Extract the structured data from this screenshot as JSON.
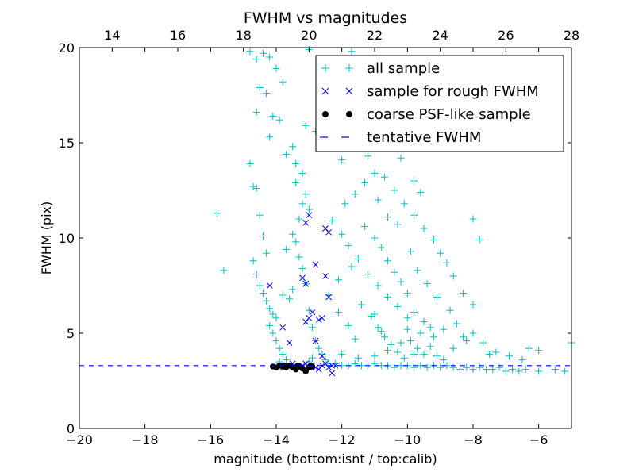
{
  "chart_data": {
    "type": "scatter",
    "title": "FWHM vs magnitudes",
    "xlabel": "magnitude (bottom:isnt / top:calib)",
    "ylabel": "FWHM (pix)",
    "xlim": [
      -20,
      -5
    ],
    "ylim": [
      0,
      20
    ],
    "top_xlim": [
      13,
      28
    ],
    "grid": false,
    "legend_position": "top-right",
    "x_ticks": [
      {
        "value": -20,
        "label": "−20"
      },
      {
        "value": -18,
        "label": "−18"
      },
      {
        "value": -16,
        "label": "−16"
      },
      {
        "value": -14,
        "label": "−14"
      },
      {
        "value": -12,
        "label": "−12"
      },
      {
        "value": -10,
        "label": "−10"
      },
      {
        "value": -8,
        "label": "−8"
      },
      {
        "value": -6,
        "label": "−6"
      }
    ],
    "y_ticks": [
      {
        "value": 0,
        "label": "0"
      },
      {
        "value": 5,
        "label": "5"
      },
      {
        "value": 10,
        "label": "10"
      },
      {
        "value": 15,
        "label": "15"
      },
      {
        "value": 20,
        "label": "20"
      }
    ],
    "top_ticks": [
      {
        "value": 14,
        "label": "14"
      },
      {
        "value": 16,
        "label": "16"
      },
      {
        "value": 18,
        "label": "18"
      },
      {
        "value": 20,
        "label": "20"
      },
      {
        "value": 22,
        "label": "22"
      },
      {
        "value": 24,
        "label": "24"
      },
      {
        "value": 26,
        "label": "26"
      },
      {
        "value": 28,
        "label": "28"
      }
    ],
    "series": [
      {
        "name": "all sample",
        "marker": "plus",
        "color": "#00bfbf",
        "points": [
          [
            -15.8,
            11.3
          ],
          [
            -15.6,
            8.3
          ],
          [
            -14.8,
            19.8
          ],
          [
            -14.6,
            19.4
          ],
          [
            -14.4,
            19.7
          ],
          [
            -14.2,
            19.5
          ],
          [
            -14.3,
            17.6
          ],
          [
            -14.5,
            17.9
          ],
          [
            -14.1,
            16.4
          ],
          [
            -13.9,
            16.2
          ],
          [
            -14.0,
            18.9
          ],
          [
            -13.8,
            18.2
          ],
          [
            -14.6,
            16.6
          ],
          [
            -14.2,
            15.3
          ],
          [
            -13.7,
            14.4
          ],
          [
            -13.5,
            14.8
          ],
          [
            -13.2,
            13.4
          ],
          [
            -13.4,
            13.9
          ],
          [
            -14.8,
            13.9
          ],
          [
            -14.7,
            12.7
          ],
          [
            -14.6,
            12.6
          ],
          [
            -14.5,
            11.2
          ],
          [
            -14.4,
            10.1
          ],
          [
            -14.3,
            9.2
          ],
          [
            -14.7,
            8.8
          ],
          [
            -14.6,
            8.1
          ],
          [
            -14.5,
            7.5
          ],
          [
            -14.4,
            7.1
          ],
          [
            -14.3,
            6.7
          ],
          [
            -14.2,
            6.3
          ],
          [
            -14.1,
            6.0
          ],
          [
            -14.0,
            5.8
          ],
          [
            -14.2,
            5.4
          ],
          [
            -14.1,
            5.0
          ],
          [
            -14.0,
            4.6
          ],
          [
            -13.9,
            4.2
          ],
          [
            -13.8,
            3.9
          ],
          [
            -13.7,
            3.6
          ],
          [
            -13.9,
            3.5
          ],
          [
            -13.8,
            7.0
          ],
          [
            -13.6,
            6.8
          ],
          [
            -13.5,
            7.3
          ],
          [
            -13.7,
            9.4
          ],
          [
            -13.5,
            10.2
          ],
          [
            -13.4,
            9.8
          ],
          [
            -13.3,
            9.0
          ],
          [
            -13.2,
            8.4
          ],
          [
            -13.1,
            7.6
          ],
          [
            -13.3,
            11.0
          ],
          [
            -13.2,
            11.8
          ],
          [
            -13.1,
            12.3
          ],
          [
            -13.0,
            11.5
          ],
          [
            -13.4,
            12.9
          ],
          [
            -13.0,
            6.2
          ],
          [
            -12.9,
            5.3
          ],
          [
            -12.8,
            4.6
          ],
          [
            -12.7,
            4.2
          ],
          [
            -12.6,
            3.9
          ],
          [
            -12.9,
            3.7
          ],
          [
            -13.0,
            3.5
          ],
          [
            -12.4,
            3.4
          ],
          [
            -12.2,
            3.4
          ],
          [
            -12.0,
            3.3
          ],
          [
            -11.8,
            3.3
          ],
          [
            -11.6,
            3.4
          ],
          [
            -11.4,
            3.3
          ],
          [
            -11.2,
            3.3
          ],
          [
            -11.0,
            3.4
          ],
          [
            -10.8,
            3.3
          ],
          [
            -10.6,
            3.3
          ],
          [
            -10.4,
            3.2
          ],
          [
            -10.2,
            3.3
          ],
          [
            -10.0,
            3.3
          ],
          [
            -9.8,
            3.2
          ],
          [
            -9.6,
            3.3
          ],
          [
            -9.4,
            3.2
          ],
          [
            -9.2,
            3.3
          ],
          [
            -9.0,
            3.2
          ],
          [
            -8.8,
            3.3
          ],
          [
            -8.6,
            3.2
          ],
          [
            -8.4,
            3.1
          ],
          [
            -8.2,
            3.2
          ],
          [
            -8.0,
            3.1
          ],
          [
            -7.8,
            3.2
          ],
          [
            -7.6,
            3.1
          ],
          [
            -7.4,
            3.1
          ],
          [
            -7.2,
            3.2
          ],
          [
            -7.0,
            3.0
          ],
          [
            -6.8,
            3.1
          ],
          [
            -6.6,
            3.0
          ],
          [
            -6.4,
            3.1
          ],
          [
            -6.0,
            3.0
          ],
          [
            -5.5,
            3.1
          ],
          [
            -5.2,
            3.0
          ],
          [
            -5.0,
            4.5
          ],
          [
            -6.3,
            4.2
          ],
          [
            -6.0,
            4.1
          ],
          [
            -7.5,
            3.9
          ],
          [
            -8.2,
            4.6
          ],
          [
            -8.6,
            4.2
          ],
          [
            -8.0,
            5.0
          ],
          [
            -8.9,
            5.2
          ],
          [
            -9.2,
            4.8
          ],
          [
            -9.5,
            5.6
          ],
          [
            -9.8,
            6.1
          ],
          [
            -10.0,
            5.8
          ],
          [
            -10.3,
            6.4
          ],
          [
            -10.6,
            6.9
          ],
          [
            -10.9,
            7.5
          ],
          [
            -11.2,
            8.1
          ],
          [
            -11.5,
            8.9
          ],
          [
            -11.8,
            9.6
          ],
          [
            -12.0,
            10.2
          ],
          [
            -12.3,
            10.9
          ],
          [
            -11.9,
            11.8
          ],
          [
            -11.6,
            12.3
          ],
          [
            -11.3,
            12.9
          ],
          [
            -11.0,
            13.4
          ],
          [
            -10.7,
            13.2
          ],
          [
            -10.4,
            12.5
          ],
          [
            -10.1,
            11.8
          ],
          [
            -9.8,
            11.2
          ],
          [
            -9.5,
            10.5
          ],
          [
            -9.2,
            9.9
          ],
          [
            -9.0,
            9.2
          ],
          [
            -8.8,
            8.7
          ],
          [
            -8.6,
            8.0
          ],
          [
            -8.3,
            7.1
          ],
          [
            -8.0,
            6.5
          ],
          [
            -9.8,
            13.0
          ],
          [
            -9.6,
            12.4
          ],
          [
            -8.0,
            11.0
          ],
          [
            -7.8,
            9.9
          ],
          [
            -10.2,
            14.2
          ],
          [
            -10.5,
            14.7
          ],
          [
            -11.2,
            14.3
          ],
          [
            -12.0,
            14.1
          ],
          [
            -12.5,
            16.6
          ],
          [
            -12.7,
            17.2
          ],
          [
            -12.2,
            18.6
          ],
          [
            -12.0,
            19.1
          ],
          [
            -11.7,
            19.8
          ],
          [
            -12.6,
            19.3
          ],
          [
            -13.0,
            19.9
          ],
          [
            -12.8,
            15.6
          ],
          [
            -13.1,
            15.9
          ],
          [
            -11.0,
            10.0
          ],
          [
            -10.8,
            9.5
          ],
          [
            -10.6,
            8.8
          ],
          [
            -10.4,
            8.2
          ],
          [
            -10.2,
            7.7
          ],
          [
            -10.0,
            7.1
          ],
          [
            -11.4,
            6.5
          ],
          [
            -11.1,
            5.9
          ],
          [
            -10.9,
            5.3
          ],
          [
            -10.7,
            4.8
          ],
          [
            -10.5,
            4.4
          ],
          [
            -10.3,
            4.0
          ],
          [
            -10.1,
            3.7
          ],
          [
            -9.9,
            4.6
          ],
          [
            -9.7,
            4.2
          ],
          [
            -9.5,
            3.9
          ],
          [
            -9.3,
            4.3
          ],
          [
            -9.1,
            3.8
          ],
          [
            -8.9,
            3.6
          ],
          [
            -11.6,
            4.7
          ],
          [
            -11.8,
            5.4
          ],
          [
            -12.1,
            6.1
          ],
          [
            -12.4,
            7.0
          ],
          [
            -12.1,
            7.8
          ],
          [
            -11.7,
            8.5
          ],
          [
            -9.7,
            8.3
          ],
          [
            -9.4,
            7.6
          ],
          [
            -9.1,
            6.9
          ],
          [
            -8.7,
            6.2
          ],
          [
            -8.5,
            5.5
          ],
          [
            -8.3,
            4.8
          ],
          [
            -7.7,
            4.5
          ],
          [
            -7.3,
            4.0
          ],
          [
            -6.9,
            3.8
          ],
          [
            -6.5,
            3.6
          ],
          [
            -10.9,
            12.0
          ],
          [
            -10.6,
            11.1
          ],
          [
            -11.3,
            10.6
          ],
          [
            -9.9,
            9.3
          ],
          [
            -10.3,
            10.7
          ],
          [
            -11.0,
            6.0
          ],
          [
            -10.8,
            5.1
          ],
          [
            -10.0,
            5.2
          ],
          [
            -9.6,
            5.0
          ],
          [
            -9.3,
            5.3
          ],
          [
            -12.5,
            3.6
          ],
          [
            -12.0,
            3.9
          ],
          [
            -11.5,
            3.7
          ],
          [
            -11.0,
            3.8
          ],
          [
            -10.6,
            4.1
          ],
          [
            -10.2,
            4.5
          ],
          [
            -9.8,
            3.9
          ]
        ]
      },
      {
        "name": "sample for rough FWHM",
        "marker": "x",
        "color": "#0000ff",
        "points": [
          [
            -14.2,
            7.5
          ],
          [
            -13.8,
            5.3
          ],
          [
            -13.6,
            4.5
          ],
          [
            -13.0,
            11.2
          ],
          [
            -13.1,
            10.8
          ],
          [
            -12.8,
            8.6
          ],
          [
            -13.2,
            7.9
          ],
          [
            -13.1,
            7.6
          ],
          [
            -12.9,
            6.1
          ],
          [
            -13.0,
            5.8
          ],
          [
            -13.1,
            5.6
          ],
          [
            -12.7,
            5.7
          ],
          [
            -12.6,
            5.8
          ],
          [
            -12.8,
            4.6
          ],
          [
            -12.5,
            10.5
          ],
          [
            -12.4,
            10.3
          ],
          [
            -12.5,
            8.0
          ],
          [
            -12.4,
            6.9
          ],
          [
            -12.6,
            3.8
          ],
          [
            -12.5,
            3.4
          ],
          [
            -12.3,
            3.3
          ],
          [
            -12.4,
            3.2
          ],
          [
            -12.6,
            3.3
          ],
          [
            -12.8,
            3.2
          ],
          [
            -12.9,
            3.3
          ],
          [
            -13.0,
            3.2
          ],
          [
            -13.2,
            3.3
          ],
          [
            -13.4,
            3.2
          ],
          [
            -13.6,
            3.3
          ],
          [
            -13.8,
            3.2
          ],
          [
            -13.9,
            3.3
          ],
          [
            -12.2,
            3.3
          ],
          [
            -12.3,
            2.9
          ],
          [
            -12.7,
            3.1
          ],
          [
            -13.1,
            3.4
          ],
          [
            -13.5,
            3.4
          ]
        ]
      },
      {
        "name": "coarse PSF-like sample",
        "marker": "dot",
        "color": "#000000",
        "points": [
          [
            -14.1,
            3.25
          ],
          [
            -14.0,
            3.2
          ],
          [
            -13.9,
            3.3
          ],
          [
            -13.8,
            3.25
          ],
          [
            -13.7,
            3.2
          ],
          [
            -13.6,
            3.3
          ],
          [
            -13.5,
            3.2
          ],
          [
            -13.4,
            3.1
          ],
          [
            -13.3,
            3.25
          ],
          [
            -13.2,
            3.15
          ],
          [
            -13.1,
            3.0
          ],
          [
            -13.0,
            3.2
          ],
          [
            -12.95,
            3.3
          ],
          [
            -12.9,
            3.25
          ],
          [
            -13.35,
            3.3
          ],
          [
            -13.75,
            3.3
          ]
        ]
      }
    ],
    "hline": {
      "name": "tentative FWHM",
      "y": 3.3,
      "color": "#0000ff",
      "style": "dashed"
    }
  }
}
